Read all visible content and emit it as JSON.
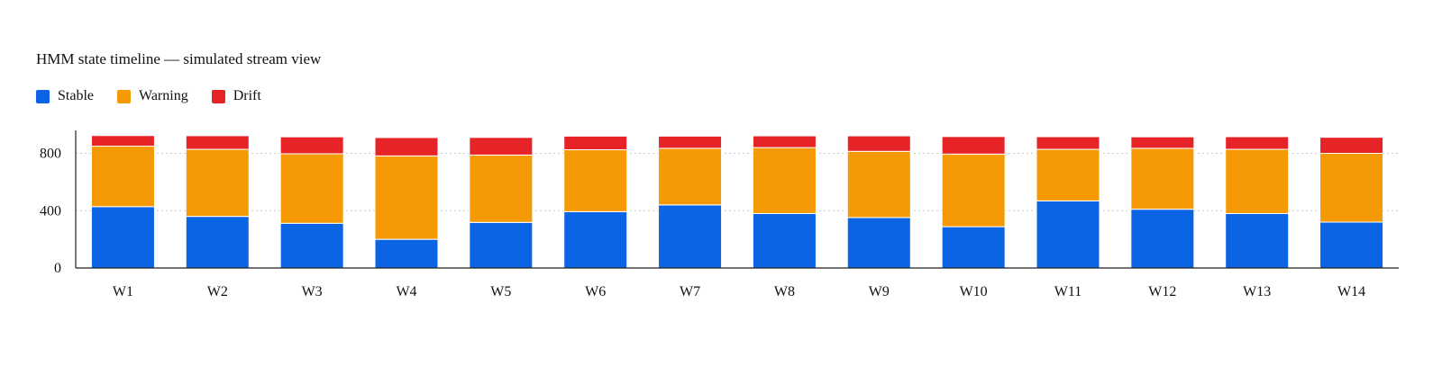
{
  "chart_data": {
    "type": "bar",
    "stacked": true,
    "title": "HMM state timeline — simulated stream view",
    "xlabel": "",
    "ylabel": "",
    "categories": [
      "W1",
      "W2",
      "W3",
      "W4",
      "W5",
      "W6",
      "W7",
      "W8",
      "W9",
      "W10",
      "W11",
      "W12",
      "W13",
      "W14"
    ],
    "series": [
      {
        "name": "Stable",
        "color": "#0a64e4",
        "values": [
          428,
          360,
          312,
          200,
          318,
          393,
          440,
          380,
          352,
          288,
          468,
          410,
          380,
          320
        ]
      },
      {
        "name": "Warning",
        "color": "#f59a05",
        "values": [
          422,
          468,
          485,
          582,
          470,
          432,
          395,
          460,
          462,
          507,
          360,
          425,
          448,
          480
        ]
      },
      {
        "name": "Drift",
        "color": "#e62326",
        "values": [
          74,
          95,
          118,
          128,
          123,
          95,
          85,
          82,
          108,
          122,
          88,
          80,
          88,
          112
        ]
      }
    ],
    "yticks": [
      0,
      400,
      800
    ],
    "ylim": [
      0,
      960
    ],
    "grid": {
      "horizontal": true,
      "style": "dotted"
    },
    "legend_position": "top-left"
  }
}
